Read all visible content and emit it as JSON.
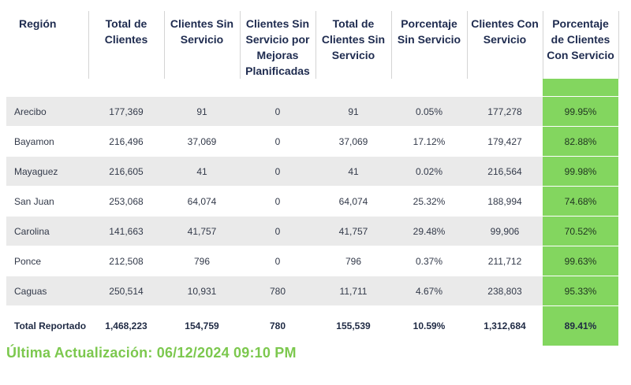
{
  "headers": [
    "Región",
    "Total de Clientes",
    "Clientes Sin Servicio",
    "Clientes Sin Servicio por Mejoras Planificadas",
    "Total de Clientes Sin Servicio",
    "Porcentaje Sin Servicio",
    "Clientes Con Servicio",
    "Porcentaje de Clientes Con Servicio"
  ],
  "rows": [
    [
      "Arecibo",
      "177,369",
      "91",
      "0",
      "91",
      "0.05%",
      "177,278",
      "99.95%"
    ],
    [
      "Bayamon",
      "216,496",
      "37,069",
      "0",
      "37,069",
      "17.12%",
      "179,427",
      "82.88%"
    ],
    [
      "Mayaguez",
      "216,605",
      "41",
      "0",
      "41",
      "0.02%",
      "216,564",
      "99.98%"
    ],
    [
      "San Juan",
      "253,068",
      "64,074",
      "0",
      "64,074",
      "25.32%",
      "188,994",
      "74.68%"
    ],
    [
      "Carolina",
      "141,663",
      "41,757",
      "0",
      "41,757",
      "29.48%",
      "99,906",
      "70.52%"
    ],
    [
      "Ponce",
      "212,508",
      "796",
      "0",
      "796",
      "0.37%",
      "211,712",
      "99.63%"
    ],
    [
      "Caguas",
      "250,514",
      "10,931",
      "780",
      "11,711",
      "4.67%",
      "238,803",
      "95.33%"
    ]
  ],
  "total": [
    "Total Reportado",
    "1,468,223",
    "154,759",
    "780",
    "155,539",
    "10.59%",
    "1,312,684",
    "89.41%"
  ],
  "last_update": "Última Actualización: 06/12/2024 09:10 PM",
  "colors": {
    "highlight": "#83d65f",
    "update_text": "#7cc84e",
    "stripe": "#eaeaea"
  }
}
